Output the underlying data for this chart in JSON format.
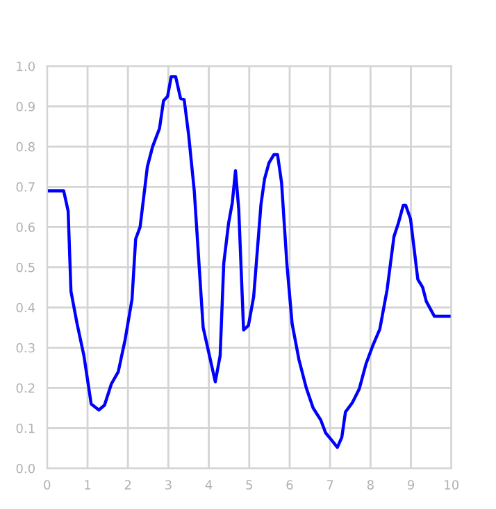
{
  "chart_data": {
    "type": "line",
    "xlim": [
      0,
      10
    ],
    "ylim": [
      0,
      1
    ],
    "xticks": [
      0,
      1,
      2,
      3,
      4,
      5,
      6,
      7,
      8,
      9,
      10
    ],
    "yticks": [
      {
        "value": 0,
        "label": "0.0"
      },
      {
        "value": 0.1,
        "label": "0.1"
      },
      {
        "value": 0.2,
        "label": "0.2"
      },
      {
        "value": 0.3,
        "label": "0.3"
      },
      {
        "value": 0.4,
        "label": "0.4"
      },
      {
        "value": 0.5,
        "label": "0.5"
      },
      {
        "value": 0.6,
        "label": "0.6"
      },
      {
        "value": 0.7,
        "label": "0.7"
      },
      {
        "value": 0.8,
        "label": "0.8"
      },
      {
        "value": 0.9,
        "label": "0.9"
      },
      {
        "value": 1,
        "label": "1.0"
      }
    ],
    "grid": true,
    "marker": "none",
    "line_style": "solid",
    "x": [
      0,
      0.41,
      0.52,
      0.59,
      0.74,
      0.91,
      1.09,
      1.28,
      1.42,
      1.59,
      1.76,
      1.93,
      2.1,
      2.19,
      2.3,
      2.48,
      2.61,
      2.78,
      2.88,
      2.98,
      3.07,
      3.18,
      3.3,
      3.39,
      3.5,
      3.64,
      3.86,
      4.16,
      4.28,
      4.37,
      4.49,
      4.58,
      4.66,
      4.74,
      4.86,
      4.98,
      5.11,
      5.29,
      5.38,
      5.49,
      5.61,
      5.7,
      5.8,
      5.93,
      6.06,
      6.23,
      6.41,
      6.58,
      6.77,
      6.89,
      7.03,
      7.18,
      7.29,
      7.38,
      7.55,
      7.72,
      7.89,
      8.06,
      8.23,
      8.41,
      8.58,
      8.69,
      8.81,
      8.87,
      8.99,
      9.07,
      9.17,
      9.29,
      9.38,
      9.58,
      10
    ],
    "series": [
      {
        "color": "#0000ff",
        "values": [
          0.69,
          0.69,
          0.64,
          0.44,
          0.36,
          0.28,
          0.16,
          0.145,
          0.157,
          0.21,
          0.24,
          0.32,
          0.42,
          0.57,
          0.6,
          0.75,
          0.8,
          0.845,
          0.914,
          0.925,
          0.974,
          0.974,
          0.92,
          0.917,
          0.83,
          0.69,
          0.35,
          0.215,
          0.28,
          0.51,
          0.61,
          0.66,
          0.74,
          0.645,
          0.344,
          0.355,
          0.427,
          0.656,
          0.72,
          0.76,
          0.78,
          0.78,
          0.71,
          0.51,
          0.36,
          0.27,
          0.2,
          0.15,
          0.12,
          0.088,
          0.071,
          0.052,
          0.077,
          0.14,
          0.163,
          0.197,
          0.26,
          0.306,
          0.346,
          0.444,
          0.576,
          0.61,
          0.654,
          0.654,
          0.62,
          0.553,
          0.47,
          0.45,
          0.415,
          0.378,
          0.378
        ]
      }
    ]
  }
}
